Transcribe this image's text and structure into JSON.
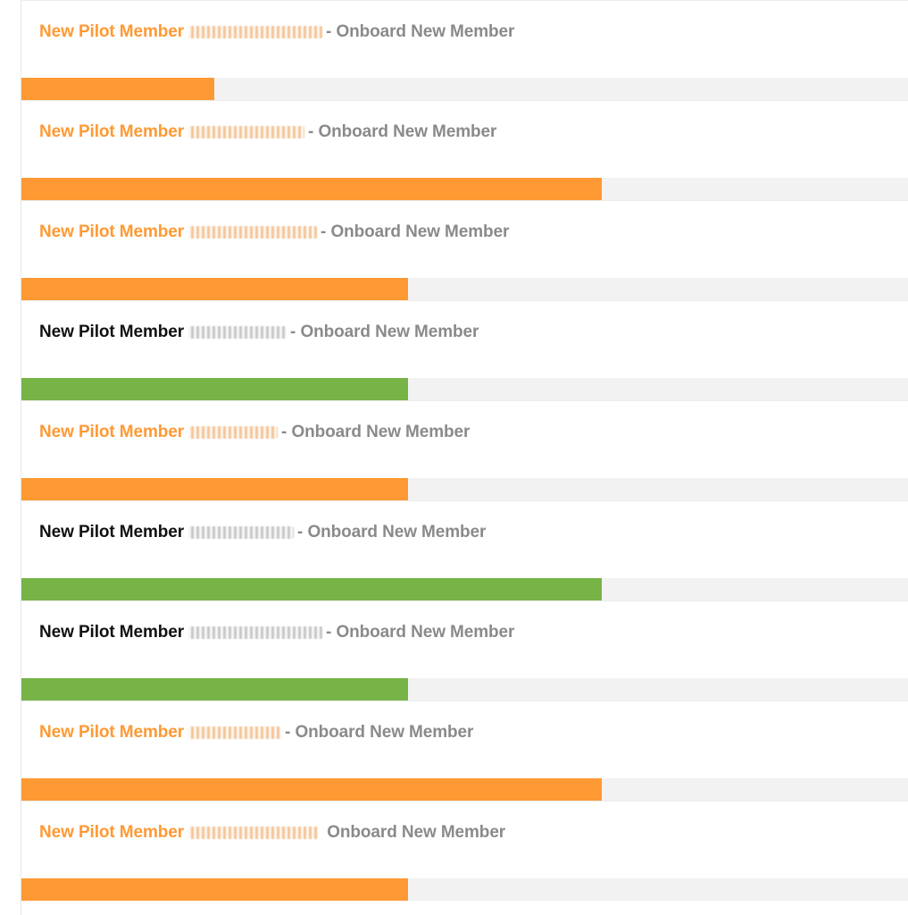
{
  "colors": {
    "pending": "#ff9933",
    "complete": "#77b347",
    "track": "#f2f2f2",
    "muted": "#8a8a8a"
  },
  "tasks": [
    {
      "prefix": "New Pilot Member",
      "name_redacted": true,
      "separator": "-",
      "action": "Onboard New Member",
      "status": "pending",
      "progress": 0.217
    },
    {
      "prefix": "New Pilot Member",
      "name_redacted": true,
      "separator": "-",
      "action": "Onboard New Member",
      "status": "pending",
      "progress": 0.654
    },
    {
      "prefix": "New Pilot Member",
      "name_redacted": true,
      "separator": "-",
      "action": "Onboard New Member",
      "status": "pending",
      "progress": 0.436
    },
    {
      "prefix": "New Pilot Member",
      "name_redacted": true,
      "separator": "-",
      "action": "Onboard New Member",
      "status": "complete",
      "progress": 0.436
    },
    {
      "prefix": "New Pilot Member",
      "name_redacted": true,
      "separator": "-",
      "action": "Onboard New Member",
      "status": "pending",
      "progress": 0.436
    },
    {
      "prefix": "New Pilot Member",
      "name_redacted": true,
      "separator": "-",
      "action": "Onboard New Member",
      "status": "complete",
      "progress": 0.654
    },
    {
      "prefix": "New Pilot Member",
      "name_redacted": true,
      "separator": "-",
      "action": "Onboard New Member",
      "status": "complete",
      "progress": 0.436
    },
    {
      "prefix": "New Pilot Member",
      "name_redacted": true,
      "separator": "-",
      "action": "Onboard New Member",
      "status": "pending",
      "progress": 0.654
    },
    {
      "prefix": "New Pilot Member",
      "name_redacted": true,
      "separator": "",
      "action": "Onboard New Member",
      "status": "pending",
      "progress": 0.436
    }
  ]
}
